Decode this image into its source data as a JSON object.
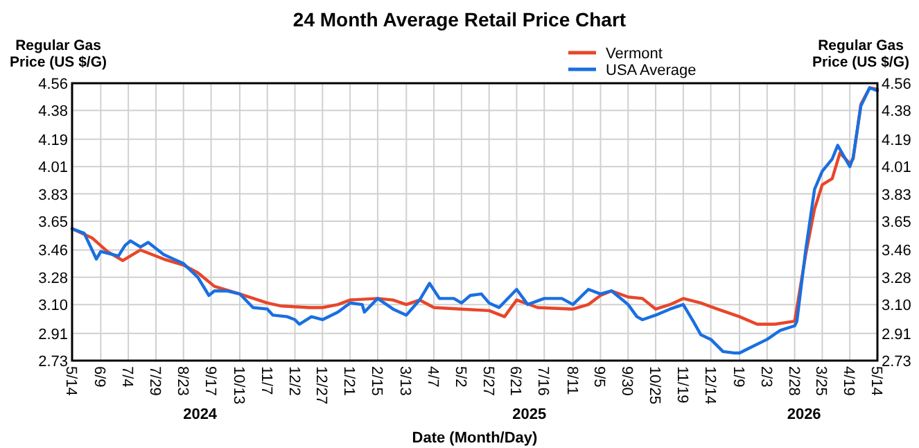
{
  "chart_data": {
    "type": "line",
    "title": "24 Month Average Retail Price Chart",
    "xlabel": "Date (Month/Day)",
    "ylabel": "Regular Gas Price (US $/G)",
    "y2label": "Regular Gas Price (US $/G)",
    "legend": "top right",
    "grid": true,
    "marker": "none",
    "line_style": "solid",
    "xlim": [
      "2024-05-14",
      "2026-05-14"
    ],
    "xticks": [
      {
        "value": "2024-05-14",
        "label": "5/14"
      },
      {
        "value": "2024-06-09",
        "label": "6/9"
      },
      {
        "value": "2024-07-04",
        "label": "7/4"
      },
      {
        "value": "2024-07-29",
        "label": "7/29"
      },
      {
        "value": "2024-08-23",
        "label": "8/23"
      },
      {
        "value": "2024-09-17",
        "label": "9/17"
      },
      {
        "value": "2024-10-13",
        "label": "10/13"
      },
      {
        "value": "2024-11-07",
        "label": "11/7"
      },
      {
        "value": "2024-12-02",
        "label": "12/2"
      },
      {
        "value": "2024-12-27",
        "label": "12/27"
      },
      {
        "value": "2025-01-21",
        "label": "1/21"
      },
      {
        "value": "2025-02-15",
        "label": "2/15"
      },
      {
        "value": "2025-03-13",
        "label": "3/13"
      },
      {
        "value": "2025-04-07",
        "label": "4/7"
      },
      {
        "value": "2025-05-02",
        "label": "5/2"
      },
      {
        "value": "2025-05-27",
        "label": "5/27"
      },
      {
        "value": "2025-06-21",
        "label": "6/21"
      },
      {
        "value": "2025-07-16",
        "label": "7/16"
      },
      {
        "value": "2025-08-11",
        "label": "8/11"
      },
      {
        "value": "2025-09-05",
        "label": "9/5"
      },
      {
        "value": "2025-09-30",
        "label": "9/30"
      },
      {
        "value": "2025-10-25",
        "label": "10/25"
      },
      {
        "value": "2025-11-19",
        "label": "11/19"
      },
      {
        "value": "2025-12-14",
        "label": "12/14"
      },
      {
        "value": "2026-01-09",
        "label": "1/9"
      },
      {
        "value": "2026-02-03",
        "label": "2/3"
      },
      {
        "value": "2026-02-28",
        "label": "2/28"
      },
      {
        "value": "2026-03-25",
        "label": "3/25"
      },
      {
        "value": "2026-04-19",
        "label": "4/19"
      },
      {
        "value": "2026-05-14",
        "label": "5/14"
      }
    ],
    "ylim": [
      2.73,
      4.56
    ],
    "yticks": [
      2.73,
      2.91,
      {
        "value": 3.1,
        "label": "3.10"
      },
      3.28,
      3.46,
      3.65,
      3.83,
      4.01,
      4.19,
      4.38,
      4.56
    ],
    "y2lim": [
      2.73,
      4.56
    ],
    "y2ticks": [
      2.73,
      2.91,
      {
        "value": 3.1,
        "label": "3.10"
      },
      3.28,
      3.46,
      3.65,
      3.83,
      4.01,
      4.19,
      4.38,
      4.56
    ],
    "annotations": [
      "2024",
      "2025",
      "2026"
    ],
    "series": [
      {
        "name": "Vermont",
        "color": "#e8462a",
        "x": [
          "2024-05-14",
          "2024-06-01",
          "2024-06-15",
          "2024-06-29",
          "2024-07-15",
          "2024-08-05",
          "2024-08-23",
          "2024-09-05",
          "2024-09-20",
          "2024-10-13",
          "2024-11-07",
          "2024-11-20",
          "2024-12-15",
          "2024-12-27",
          "2025-01-10",
          "2025-01-21",
          "2025-02-15",
          "2025-03-01",
          "2025-03-13",
          "2025-03-25",
          "2025-04-07",
          "2025-05-02",
          "2025-05-27",
          "2025-06-10",
          "2025-06-21",
          "2025-07-10",
          "2025-08-11",
          "2025-08-25",
          "2025-09-05",
          "2025-09-15",
          "2025-09-30",
          "2025-10-13",
          "2025-10-25",
          "2025-11-07",
          "2025-11-19",
          "2025-12-05",
          "2025-12-20",
          "2026-01-09",
          "2026-01-25",
          "2026-02-10",
          "2026-02-28",
          "2026-03-10",
          "2026-03-18",
          "2026-03-25",
          "2026-04-03",
          "2026-04-10",
          "2026-04-19",
          "2026-04-22",
          "2026-04-29",
          "2026-05-07",
          "2026-05-14"
        ],
        "values": [
          3.6,
          3.54,
          3.45,
          3.39,
          3.46,
          3.4,
          3.36,
          3.31,
          3.22,
          3.17,
          3.11,
          3.09,
          3.08,
          3.08,
          3.1,
          3.13,
          3.14,
          3.13,
          3.1,
          3.13,
          3.08,
          3.07,
          3.06,
          3.02,
          3.13,
          3.08,
          3.07,
          3.1,
          3.16,
          3.19,
          3.15,
          3.14,
          3.07,
          3.1,
          3.14,
          3.11,
          3.07,
          3.02,
          2.97,
          2.97,
          2.99,
          3.43,
          3.73,
          3.89,
          3.93,
          4.1,
          4.03,
          4.06,
          4.42,
          4.53,
          4.52
        ]
      },
      {
        "name": "USA Average",
        "color": "#1a6fe0",
        "x": [
          "2024-05-14",
          "2024-05-25",
          "2024-06-05",
          "2024-06-09",
          "2024-06-25",
          "2024-07-01",
          "2024-07-06",
          "2024-07-15",
          "2024-07-22",
          "2024-08-05",
          "2024-08-23",
          "2024-09-05",
          "2024-09-15",
          "2024-09-20",
          "2024-10-01",
          "2024-10-13",
          "2024-10-25",
          "2024-11-07",
          "2024-11-12",
          "2024-11-25",
          "2024-12-02",
          "2024-12-06",
          "2024-12-17",
          "2024-12-27",
          "2025-01-10",
          "2025-01-21",
          "2025-02-01",
          "2025-02-03",
          "2025-02-15",
          "2025-03-01",
          "2025-03-13",
          "2025-03-25",
          "2025-04-03",
          "2025-04-12",
          "2025-04-25",
          "2025-05-02",
          "2025-05-10",
          "2025-05-20",
          "2025-05-27",
          "2025-06-05",
          "2025-06-21",
          "2025-07-01",
          "2025-07-16",
          "2025-08-01",
          "2025-08-11",
          "2025-08-25",
          "2025-09-05",
          "2025-09-15",
          "2025-09-25",
          "2025-09-30",
          "2025-10-08",
          "2025-10-13",
          "2025-10-25",
          "2025-11-07",
          "2025-11-19",
          "2025-11-28",
          "2025-12-05",
          "2025-12-14",
          "2025-12-25",
          "2026-01-05",
          "2026-01-09",
          "2026-01-20",
          "2026-02-03",
          "2026-02-15",
          "2026-02-28",
          "2026-03-02",
          "2026-03-10",
          "2026-03-18",
          "2026-03-25",
          "2026-04-03",
          "2026-04-08",
          "2026-04-19",
          "2026-04-22",
          "2026-04-29",
          "2026-05-07",
          "2026-05-14"
        ],
        "values": [
          3.6,
          3.57,
          3.4,
          3.45,
          3.42,
          3.49,
          3.52,
          3.48,
          3.51,
          3.43,
          3.37,
          3.28,
          3.16,
          3.19,
          3.19,
          3.17,
          3.08,
          3.07,
          3.03,
          3.02,
          3.0,
          2.97,
          3.02,
          3.0,
          3.05,
          3.11,
          3.1,
          3.05,
          3.14,
          3.07,
          3.03,
          3.13,
          3.24,
          3.14,
          3.14,
          3.11,
          3.16,
          3.17,
          3.11,
          3.08,
          3.2,
          3.1,
          3.14,
          3.14,
          3.1,
          3.2,
          3.17,
          3.19,
          3.13,
          3.1,
          3.02,
          3.0,
          3.03,
          3.07,
          3.1,
          2.99,
          2.9,
          2.87,
          2.79,
          2.78,
          2.78,
          2.82,
          2.87,
          2.93,
          2.96,
          2.99,
          3.46,
          3.86,
          3.98,
          4.06,
          4.15,
          4.01,
          4.07,
          4.41,
          4.53,
          4.51
        ]
      }
    ]
  }
}
